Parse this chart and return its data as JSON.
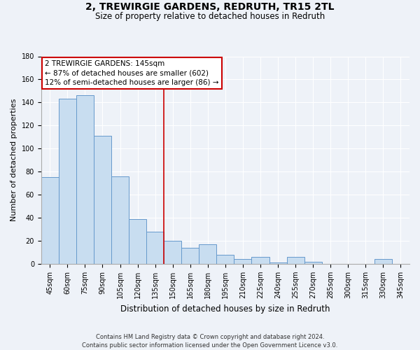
{
  "title": "2, TREWIRGIE GARDENS, REDRUTH, TR15 2TL",
  "subtitle": "Size of property relative to detached houses in Redruth",
  "xlabel": "Distribution of detached houses by size in Redruth",
  "ylabel": "Number of detached properties",
  "bar_color": "#c8ddf0",
  "bar_edge_color": "#6699cc",
  "categories": [
    "45sqm",
    "60sqm",
    "75sqm",
    "90sqm",
    "105sqm",
    "120sqm",
    "135sqm",
    "150sqm",
    "165sqm",
    "180sqm",
    "195sqm",
    "210sqm",
    "225sqm",
    "240sqm",
    "255sqm",
    "270sqm",
    "285sqm",
    "300sqm",
    "315sqm",
    "330sqm",
    "345sqm"
  ],
  "values": [
    75,
    143,
    146,
    111,
    76,
    39,
    28,
    20,
    14,
    17,
    8,
    4,
    6,
    1,
    6,
    2,
    0,
    0,
    0,
    4,
    0
  ],
  "ylim": [
    0,
    180
  ],
  "yticks": [
    0,
    20,
    40,
    60,
    80,
    100,
    120,
    140,
    160,
    180
  ],
  "annotation_title": "2 TREWIRGIE GARDENS: 145sqm",
  "annotation_line1": "← 87% of detached houses are smaller (602)",
  "annotation_line2": "12% of semi-detached houses are larger (86) →",
  "reference_line_color": "#cc0000",
  "annotation_box_color": "#cc0000",
  "footer_line1": "Contains HM Land Registry data © Crown copyright and database right 2024.",
  "footer_line2": "Contains public sector information licensed under the Open Government Licence v3.0.",
  "bg_color": "#eef2f8",
  "grid_color": "#ffffff",
  "title_fontsize": 10,
  "subtitle_fontsize": 8.5,
  "xlabel_fontsize": 8.5,
  "ylabel_fontsize": 8,
  "tick_fontsize": 7,
  "annotation_fontsize": 7.5,
  "footer_fontsize": 6
}
